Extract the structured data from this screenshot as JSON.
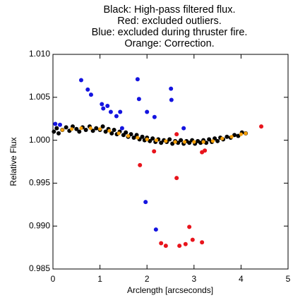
{
  "chart_data": {
    "type": "scatter",
    "title": [
      "Black: High-pass filtered flux.",
      "Red: excluded outliers.",
      "Blue: excluded during thruster fire.",
      "Orange: Correction."
    ],
    "xlabel": "Arclength [arcseconds]",
    "ylabel": "Relative Flux",
    "xlim": [
      0,
      5
    ],
    "ylim": [
      0.985,
      1.01
    ],
    "xticks": [
      0,
      1,
      2,
      3,
      4,
      5
    ],
    "yticks": [
      {
        "value": 0.985,
        "label": "0.985"
      },
      {
        "value": 0.99,
        "label": "0.990"
      },
      {
        "value": 0.995,
        "label": "0.995"
      },
      {
        "value": 1,
        "label": "1.000"
      },
      {
        "value": 1.005,
        "label": "1.005"
      },
      {
        "value": 1.01,
        "label": "1.010"
      }
    ],
    "series": [
      {
        "color": "#000000",
        "x": [
          0.02,
          0.08,
          0.12,
          0.2,
          0.28,
          0.35,
          0.42,
          0.5,
          0.56,
          0.63,
          0.7,
          0.78,
          0.85,
          0.92,
          1.0,
          1.06,
          1.12,
          1.18,
          1.25,
          1.3,
          1.36,
          1.42,
          1.5,
          1.55,
          1.6,
          1.66,
          1.72,
          1.78,
          1.84,
          1.9,
          1.95,
          2.0,
          2.06,
          2.12,
          2.18,
          2.24,
          2.3,
          2.36,
          2.42,
          2.48,
          2.54,
          2.6,
          2.66,
          2.72,
          2.78,
          2.84,
          2.9,
          2.96,
          3.02,
          3.08,
          3.14,
          3.2,
          3.26,
          3.32,
          3.38,
          3.44,
          3.5,
          3.56,
          3.62,
          3.7,
          3.78,
          3.86,
          3.94,
          4.02,
          4.1
        ],
        "y": [
          1.001,
          1.0014,
          1.0008,
          1.0012,
          1.0015,
          1.0011,
          1.0016,
          1.0013,
          1.001,
          1.0015,
          1.0012,
          1.0016,
          1.0011,
          1.0014,
          1.0012,
          1.0016,
          1.001,
          1.0013,
          1.0008,
          1.0012,
          1.0007,
          1.001,
          1.0006,
          1.0009,
          1.0004,
          1.0007,
          1.0003,
          1.0006,
          1.0001,
          1.0004,
          1.0,
          1.0003,
          0.9999,
          1.0002,
          0.9998,
          1.0001,
          0.9997,
          1.0,
          0.9998,
          1.0001,
          0.9996,
          0.9999,
          0.9997,
          1.0,
          0.9996,
          0.9999,
          0.9997,
          1.0,
          0.9996,
          0.9999,
          0.9997,
          1.0,
          0.9997,
          1.0001,
          0.9998,
          1.0002,
          0.9999,
          1.0003,
          1.0001,
          1.0004,
          1.0003,
          1.0006,
          1.0005,
          1.0009,
          1.0008
        ]
      },
      {
        "color": "#e8141c",
        "x": [
          1.85,
          2.15,
          2.63,
          2.3,
          2.4,
          2.69,
          2.82,
          2.9,
          2.97,
          3.17,
          3.17,
          3.23,
          4.43,
          2.63
        ],
        "y": [
          0.9971,
          0.9987,
          0.9956,
          0.988,
          0.9877,
          0.9877,
          0.9879,
          0.9899,
          0.9884,
          0.9881,
          0.9986,
          0.9988,
          1.0016,
          1.0007
        ]
      },
      {
        "color": "#1414e0",
        "x": [
          0.05,
          0.15,
          0.6,
          0.74,
          0.81,
          1.04,
          1.07,
          1.16,
          1.23,
          1.35,
          1.43,
          1.47,
          1.8,
          1.83,
          2.0,
          2.16,
          2.51,
          2.52,
          2.78,
          1.97,
          2.19
        ],
        "y": [
          1.0019,
          1.0018,
          1.007,
          1.0059,
          1.0053,
          1.0042,
          1.0037,
          1.004,
          1.0033,
          1.0028,
          1.0033,
          1.0014,
          1.0071,
          1.0048,
          1.0033,
          1.0027,
          1.006,
          1.0047,
          1.0014,
          0.9928,
          0.9896
        ]
      },
      {
        "color": "#f5a00a",
        "x": [
          0.2,
          0.4,
          0.6,
          0.8,
          1.0,
          1.2,
          1.4,
          1.6,
          1.8,
          2.0,
          2.2,
          2.4,
          2.6,
          2.8,
          3.0,
          3.2,
          3.4,
          3.6,
          3.8,
          4.0,
          4.1
        ],
        "y": [
          1.0012,
          1.0013,
          1.0014,
          1.0014,
          1.0013,
          1.0011,
          1.0008,
          1.0005,
          1.0003,
          1.0001,
          1.0,
          0.9999,
          0.9998,
          0.9998,
          0.9998,
          0.9998,
          0.9999,
          1.0002,
          1.0004,
          1.0007,
          1.0008
        ]
      }
    ]
  }
}
